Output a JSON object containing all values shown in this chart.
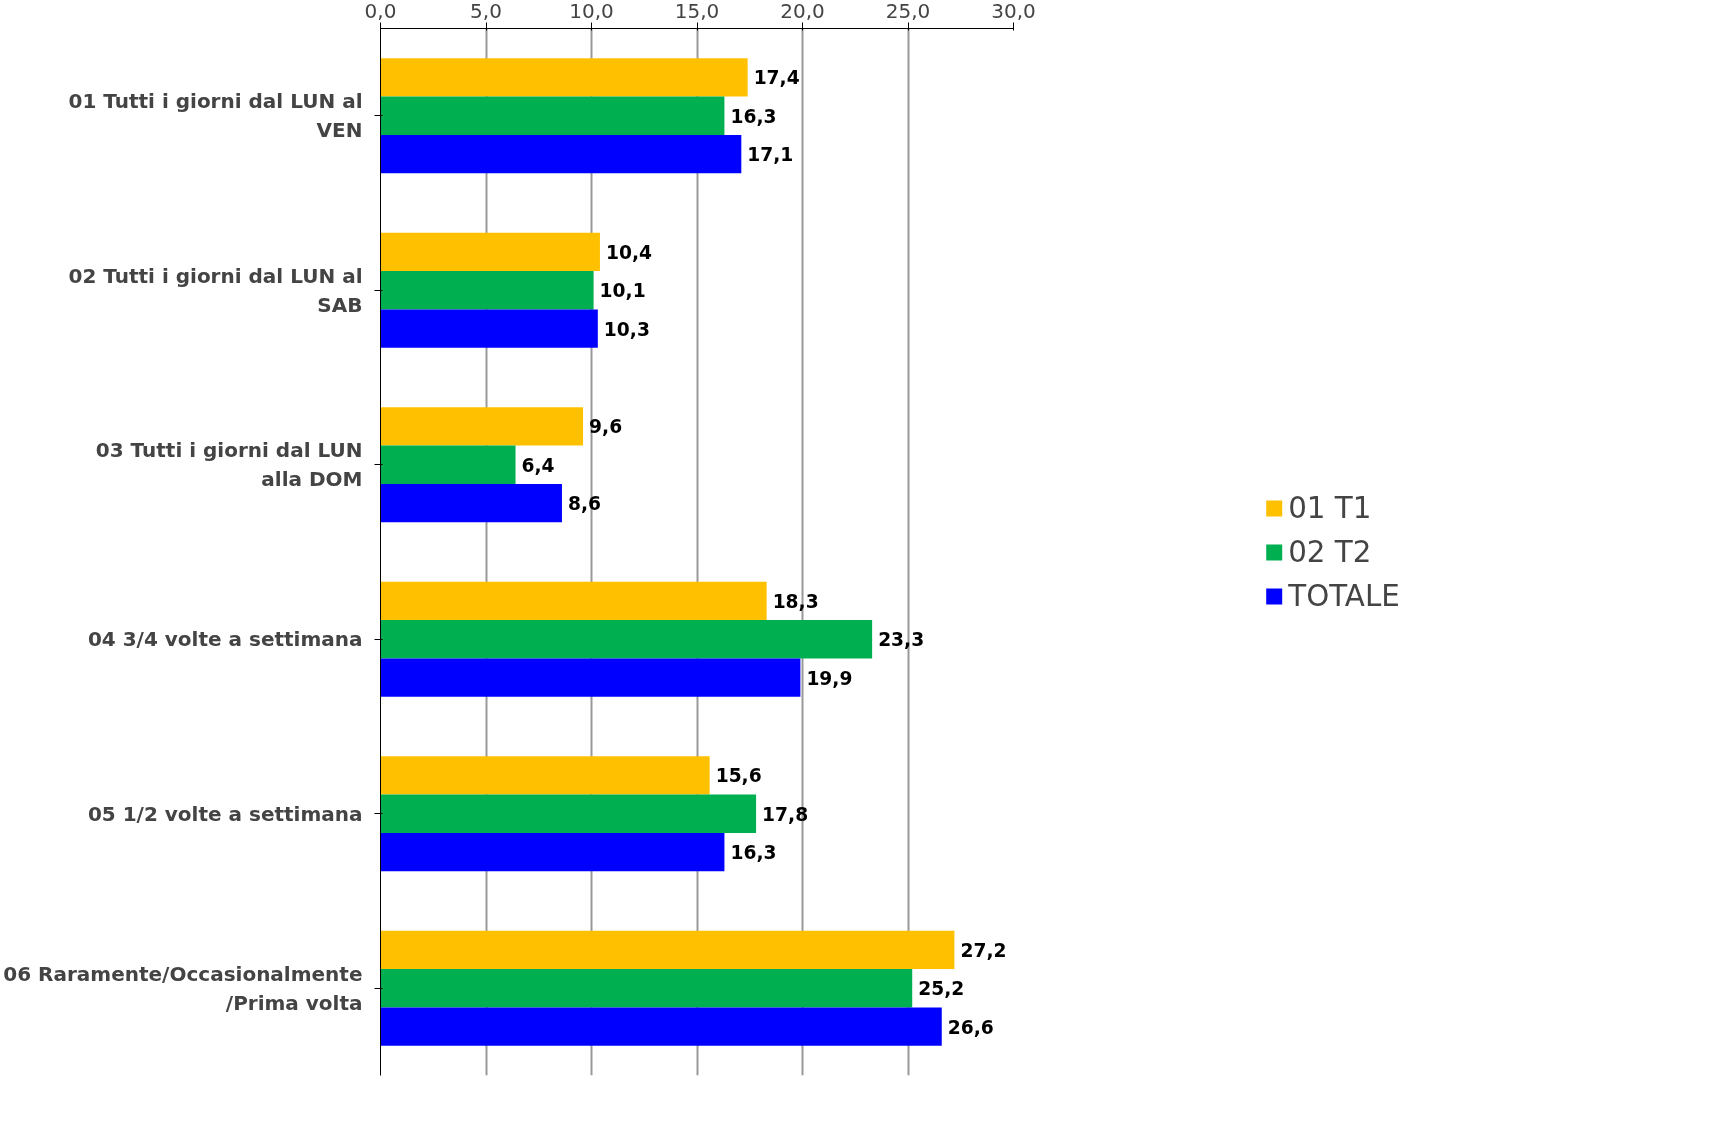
{
  "chart_data": {
    "type": "bar",
    "orientation": "horizontal",
    "categories": [
      "01 Tutti i giorni dal LUN al VEN",
      "02 Tutti i giorni dal LUN al SAB",
      "03 Tutti i giorni dal LUN alla DOM",
      "04 3/4 volte a settimana",
      "05 1/2 volte a settimana",
      "06 Raramente/Occasionalmente/Prima volta"
    ],
    "series": [
      {
        "name": "01 T1",
        "color": "#ffc000",
        "values": [
          17.4,
          10.4,
          9.6,
          18.3,
          15.6,
          27.2
        ],
        "value_labels": [
          "17,4",
          "10,4",
          "9,6",
          "18,3",
          "15,6",
          "27,2"
        ]
      },
      {
        "name": "02 T2",
        "color": "#00b050",
        "values": [
          16.3,
          10.1,
          6.4,
          23.3,
          17.8,
          25.2
        ],
        "value_labels": [
          "16,3",
          "10,1",
          "6,4",
          "23,3",
          "17,8",
          "25,2"
        ]
      },
      {
        "name": "TOTALE",
        "color": "#0000ff",
        "values": [
          17.1,
          10.3,
          8.6,
          19.9,
          16.3,
          26.6
        ],
        "value_labels": [
          "17,1",
          "10,3",
          "8,6",
          "19,9",
          "16,3",
          "26,6"
        ]
      }
    ],
    "xlim": [
      0,
      30
    ],
    "xticks": [
      {
        "value": 0,
        "label": "0,0"
      },
      {
        "value": 5,
        "label": "5,0"
      },
      {
        "value": 10,
        "label": "10,0"
      },
      {
        "value": 15,
        "label": "15,0"
      },
      {
        "value": 20,
        "label": "20,0"
      },
      {
        "value": 25,
        "label": "25,0"
      },
      {
        "value": 30,
        "label": "30,0"
      }
    ],
    "grid": "x",
    "legend": "right"
  }
}
